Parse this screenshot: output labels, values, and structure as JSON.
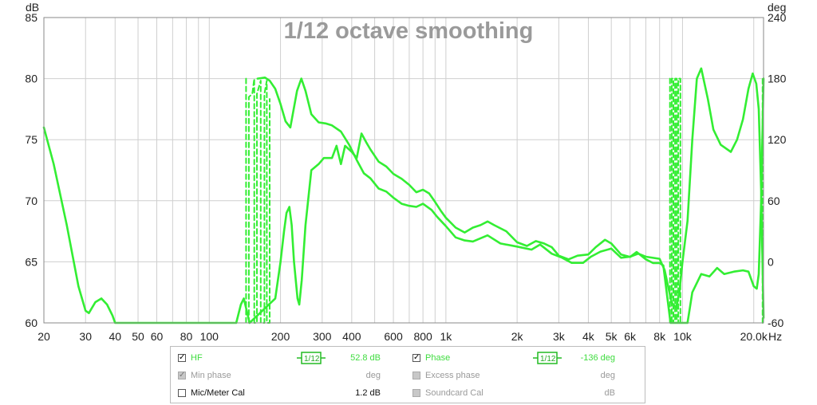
{
  "chart_data": {
    "type": "line",
    "title": "1/12 octave smoothing",
    "y_left_unit": "dB",
    "y_right_unit": "deg",
    "x_unit": "Hz",
    "x_scale": "log",
    "xlim": [
      20,
      22000
    ],
    "ylim_left": [
      60,
      85
    ],
    "ylim_right": [
      -60,
      240
    ],
    "x_ticks": [
      {
        "v": 20,
        "label": "20"
      },
      {
        "v": 30,
        "label": "30"
      },
      {
        "v": 40,
        "label": "40"
      },
      {
        "v": 50,
        "label": "50"
      },
      {
        "v": 60,
        "label": "60"
      },
      {
        "v": 80,
        "label": "80"
      },
      {
        "v": 100,
        "label": "100"
      },
      {
        "v": 200,
        "label": "200"
      },
      {
        "v": 300,
        "label": "300"
      },
      {
        "v": 400,
        "label": "400"
      },
      {
        "v": 600,
        "label": "600"
      },
      {
        "v": 800,
        "label": "800"
      },
      {
        "v": 1000,
        "label": "1k"
      },
      {
        "v": 2000,
        "label": "2k"
      },
      {
        "v": 3000,
        "label": "3k"
      },
      {
        "v": 4000,
        "label": "4k"
      },
      {
        "v": 5000,
        "label": "5k"
      },
      {
        "v": 6000,
        "label": "6k"
      },
      {
        "v": 8000,
        "label": "8k"
      },
      {
        "v": 10000,
        "label": "10k"
      },
      {
        "v": 20000,
        "label": "20.0k"
      }
    ],
    "y_left_ticks": [
      "60",
      "65",
      "70",
      "75",
      "80",
      "85"
    ],
    "y_right_ticks": [
      "-60",
      "0",
      "60",
      "120",
      "180",
      "240"
    ],
    "grid": true,
    "line_color": "#33ee33",
    "series": [
      {
        "name": "HF",
        "axis": "left",
        "style": "solid",
        "points": [
          [
            20,
            76
          ],
          [
            22,
            73
          ],
          [
            25,
            68
          ],
          [
            28,
            63
          ],
          [
            30,
            61
          ],
          [
            31,
            60.8
          ],
          [
            33,
            61.7
          ],
          [
            35,
            62
          ],
          [
            37,
            61.5
          ],
          [
            39,
            60.6
          ],
          [
            40,
            60
          ],
          [
            130,
            60
          ],
          [
            136,
            61.5
          ],
          [
            140,
            62
          ],
          [
            148,
            60
          ],
          [
            190,
            62
          ],
          [
            200,
            65
          ],
          [
            207,
            67.5
          ],
          [
            212,
            69
          ],
          [
            218,
            69.5
          ],
          [
            223,
            68
          ],
          [
            228,
            65
          ],
          [
            236,
            62
          ],
          [
            240,
            61.5
          ],
          [
            246,
            63.5
          ],
          [
            255,
            68
          ],
          [
            270,
            72.5
          ],
          [
            290,
            73
          ],
          [
            305,
            73.5
          ],
          [
            330,
            73.5
          ],
          [
            345,
            74.5
          ],
          [
            360,
            73
          ],
          [
            375,
            74.5
          ],
          [
            400,
            74
          ],
          [
            420,
            73.5
          ],
          [
            440,
            75.5
          ],
          [
            460,
            74.8
          ],
          [
            480,
            74.2
          ],
          [
            520,
            73.2
          ],
          [
            560,
            72.8
          ],
          [
            600,
            72.2
          ],
          [
            650,
            71.8
          ],
          [
            700,
            71.3
          ],
          [
            750,
            70.7
          ],
          [
            800,
            70.9
          ],
          [
            850,
            70.6
          ],
          [
            900,
            69.9
          ],
          [
            950,
            69.2
          ],
          [
            1000,
            68.6
          ],
          [
            1100,
            67.8
          ],
          [
            1200,
            67.4
          ],
          [
            1300,
            67.8
          ],
          [
            1400,
            68
          ],
          [
            1500,
            68.3
          ],
          [
            1600,
            68
          ],
          [
            1800,
            67.5
          ],
          [
            2000,
            66.6
          ],
          [
            2200,
            66.3
          ],
          [
            2400,
            66.7
          ],
          [
            2600,
            66.5
          ],
          [
            2800,
            66.2
          ],
          [
            3000,
            65.5
          ],
          [
            3300,
            65.2
          ],
          [
            3600,
            65.5
          ],
          [
            4000,
            65.6
          ],
          [
            4300,
            66.2
          ],
          [
            4700,
            66.8
          ],
          [
            5000,
            66.5
          ],
          [
            5500,
            65.6
          ],
          [
            6000,
            65.4
          ],
          [
            6400,
            65.8
          ],
          [
            7000,
            65.2
          ],
          [
            7500,
            64.9
          ],
          [
            8000,
            64.9
          ],
          [
            8300,
            64.7
          ],
          [
            8700,
            61.5
          ],
          [
            8900,
            60
          ],
          [
            10500,
            60
          ],
          [
            11000,
            62.5
          ],
          [
            12000,
            64
          ],
          [
            13000,
            63.8
          ],
          [
            14000,
            64.5
          ],
          [
            15000,
            64
          ],
          [
            16500,
            64.2
          ],
          [
            18000,
            64.3
          ],
          [
            19000,
            64.2
          ],
          [
            20000,
            63
          ],
          [
            20600,
            62.8
          ],
          [
            21000,
            64
          ],
          [
            21500,
            70
          ],
          [
            22000,
            80
          ]
        ]
      },
      {
        "name": "Phase",
        "axis": "right",
        "style": "solid",
        "points": [
          [
            160,
            180
          ],
          [
            172,
            181
          ],
          [
            180,
            178
          ],
          [
            190,
            170
          ],
          [
            200,
            155
          ],
          [
            210,
            138
          ],
          [
            220,
            132
          ],
          [
            235,
            168
          ],
          [
            245,
            180
          ],
          [
            255,
            168
          ],
          [
            270,
            145
          ],
          [
            290,
            137
          ],
          [
            310,
            136
          ],
          [
            330,
            134
          ],
          [
            360,
            128
          ],
          [
            390,
            115
          ],
          [
            420,
            100
          ],
          [
            450,
            87
          ],
          [
            480,
            82
          ],
          [
            520,
            72
          ],
          [
            560,
            69
          ],
          [
            600,
            63
          ],
          [
            650,
            57
          ],
          [
            700,
            55
          ],
          [
            750,
            54
          ],
          [
            800,
            57
          ],
          [
            870,
            51
          ],
          [
            920,
            44
          ],
          [
            1000,
            35
          ],
          [
            1100,
            24
          ],
          [
            1200,
            21
          ],
          [
            1300,
            20
          ],
          [
            1500,
            26
          ],
          [
            1700,
            18
          ],
          [
            2000,
            15
          ],
          [
            2300,
            12
          ],
          [
            2500,
            17
          ],
          [
            2800,
            8
          ],
          [
            3100,
            4
          ],
          [
            3400,
            -1
          ],
          [
            3800,
            -1
          ],
          [
            4100,
            5
          ],
          [
            4500,
            10
          ],
          [
            5000,
            13
          ],
          [
            5500,
            4
          ],
          [
            6000,
            5
          ],
          [
            6500,
            8
          ],
          [
            7000,
            5
          ],
          [
            8000,
            3
          ],
          [
            8400,
            -8
          ],
          [
            8800,
            -30
          ],
          [
            9000,
            -40
          ],
          [
            9400,
            -45
          ],
          [
            9700,
            -30
          ],
          [
            10000,
            0
          ],
          [
            10500,
            40
          ],
          [
            11000,
            120
          ],
          [
            11500,
            180
          ],
          [
            12000,
            190
          ],
          [
            12800,
            160
          ],
          [
            13500,
            130
          ],
          [
            14500,
            115
          ],
          [
            16000,
            108
          ],
          [
            17000,
            120
          ],
          [
            18000,
            140
          ],
          [
            19000,
            170
          ],
          [
            19800,
            185
          ],
          [
            20500,
            175
          ],
          [
            21000,
            150
          ],
          [
            21500,
            70
          ],
          [
            22000,
            -55
          ]
        ]
      },
      {
        "name": "Phase wraps",
        "axis": "right",
        "style": "dashed",
        "points": [
          [
            143,
            180
          ],
          [
            143,
            -60
          ],
          [
            147,
            -60
          ],
          [
            147,
            162
          ],
          [
            152,
            165
          ],
          [
            155,
            180
          ],
          [
            155,
            -60
          ],
          [
            159,
            -60
          ],
          [
            159,
            165
          ],
          [
            165,
            178
          ],
          [
            165,
            -60
          ],
          [
            171,
            -60
          ],
          [
            171,
            165
          ],
          [
            175,
            178
          ],
          [
            175,
            -60
          ],
          [
            180,
            -60
          ],
          [
            180,
            160
          ]
        ]
      },
      {
        "name": "Phase wraps high",
        "axis": "right",
        "style": "dashed",
        "points": [
          [
            8850,
            180
          ],
          [
            8850,
            -60
          ],
          [
            9000,
            -60
          ],
          [
            9000,
            180
          ],
          [
            9150,
            180
          ],
          [
            9150,
            -60
          ],
          [
            9300,
            -60
          ],
          [
            9300,
            180
          ],
          [
            9450,
            180
          ],
          [
            9450,
            -60
          ],
          [
            9600,
            -60
          ],
          [
            9600,
            180
          ],
          [
            9800,
            180
          ],
          [
            9800,
            -60
          ]
        ]
      },
      {
        "name": "Phase wraps edge",
        "axis": "right",
        "style": "dashed",
        "points": [
          [
            21800,
            -60
          ],
          [
            21800,
            180
          ]
        ]
      }
    ]
  },
  "legend": {
    "rows": [
      {
        "left": {
          "label": "HF",
          "checked": true,
          "enabled": true,
          "value": "52.8 dB",
          "smoothing": "1/12"
        },
        "right": {
          "label": "Phase",
          "checked": true,
          "enabled": true,
          "value": "-136 deg",
          "smoothing": "1/12"
        }
      },
      {
        "left": {
          "label": "Min phase",
          "checked": true,
          "enabled": false,
          "value": "deg"
        },
        "right": {
          "label": "Excess phase",
          "checked": false,
          "enabled": false,
          "value": "deg"
        }
      },
      {
        "left": {
          "label": "Mic/Meter Cal",
          "checked": false,
          "enabled": true,
          "value": "1.2 dB"
        },
        "right": {
          "label": "Soundcard Cal",
          "checked": false,
          "enabled": false,
          "value": "dB"
        }
      }
    ]
  }
}
